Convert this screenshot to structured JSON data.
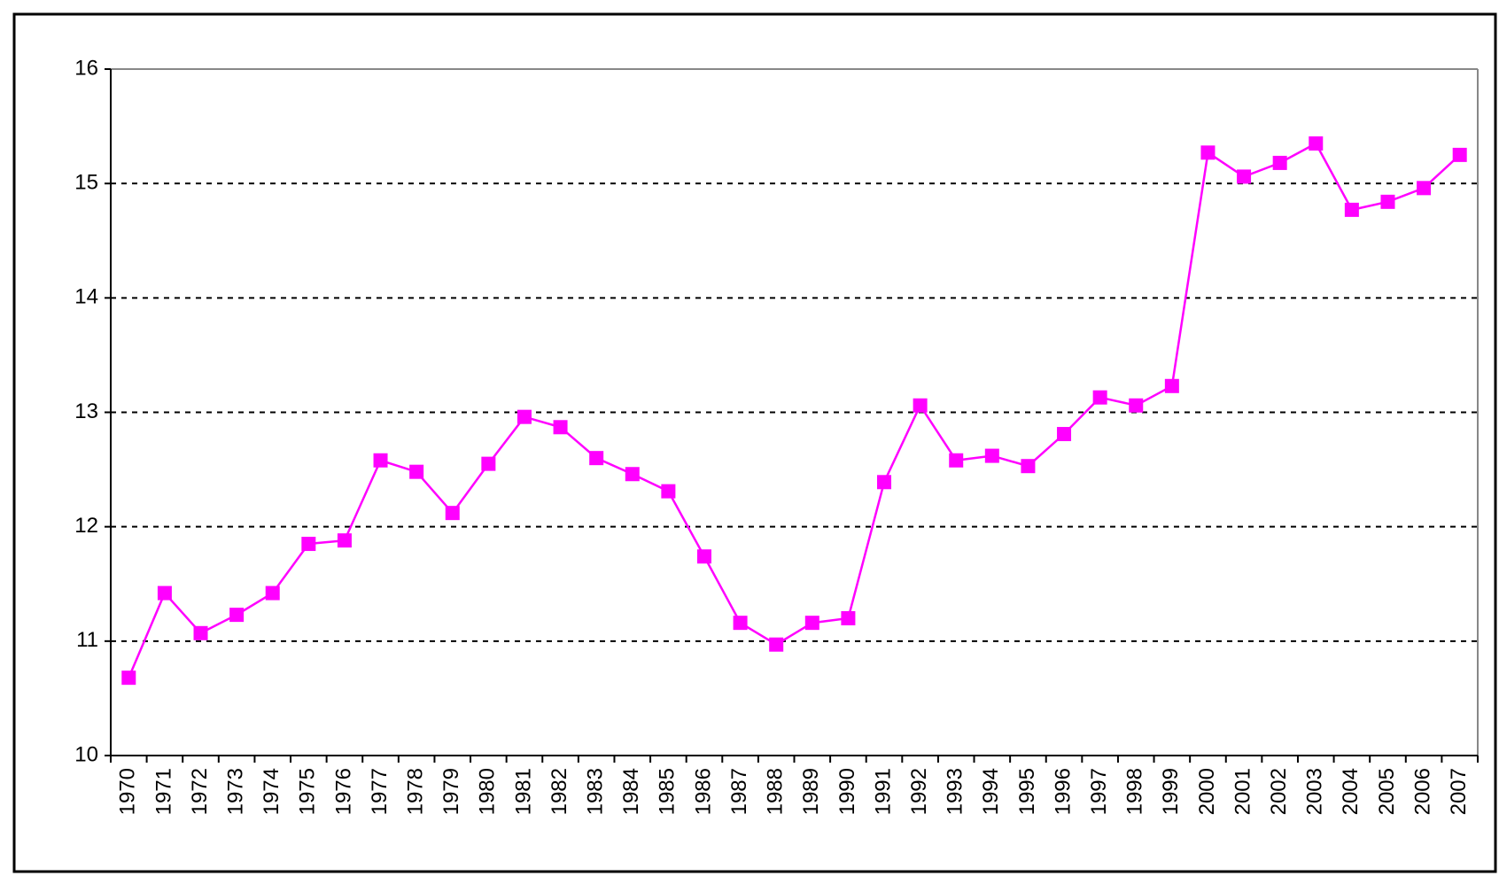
{
  "chart_data": {
    "type": "line",
    "categories": [
      "1970",
      "1971",
      "1972",
      "1973",
      "1974",
      "1975",
      "1976",
      "1977",
      "1978",
      "1979",
      "1980",
      "1981",
      "1982",
      "1983",
      "1984",
      "1985",
      "1986",
      "1987",
      "1988",
      "1989",
      "1990",
      "1991",
      "1992",
      "1993",
      "1994",
      "1995",
      "1996",
      "1997",
      "1998",
      "1999",
      "2000",
      "2001",
      "2002",
      "2003",
      "2004",
      "2005",
      "2006",
      "2007"
    ],
    "values": [
      10.68,
      11.42,
      11.07,
      11.23,
      11.42,
      11.85,
      11.88,
      12.58,
      12.48,
      12.12,
      12.55,
      12.96,
      12.87,
      12.6,
      12.46,
      12.31,
      11.74,
      11.16,
      10.97,
      11.16,
      11.2,
      12.39,
      13.06,
      12.58,
      12.62,
      12.53,
      12.81,
      13.13,
      13.06,
      13.23,
      15.27,
      15.06,
      15.18,
      15.35,
      14.77,
      14.84,
      14.96,
      15.25
    ],
    "color": "#ff00ff",
    "ylim": [
      10,
      16
    ],
    "yticks": [
      10,
      11,
      12,
      13,
      14,
      15,
      16
    ],
    "grid": true
  }
}
